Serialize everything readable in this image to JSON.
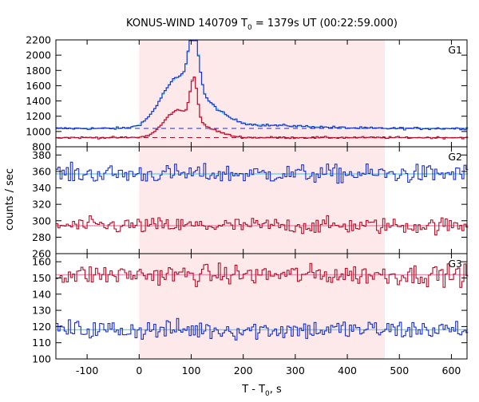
{
  "chart_data": {
    "type": "line",
    "title": "KONUS-WIND 140709 T",
    "title_sub": "0",
    "title_rest": " = 1379s UT (00:22:59.000)",
    "xlabel": "T - T",
    "xlabel_sub": "0",
    "xlabel_rest": ", s",
    "ylabel": "counts / sec",
    "xlim": [
      -160,
      630
    ],
    "x_ticks": [
      -100,
      0,
      100,
      200,
      300,
      400,
      500,
      600
    ],
    "x_tick_labels": [
      "-100",
      "0",
      "100",
      "200",
      "300",
      "400",
      "500",
      "600"
    ],
    "highlight_interval": [
      0,
      472
    ],
    "highlight_color": "#fde8ea",
    "bin_width": 4,
    "panels": [
      {
        "label": "G1",
        "ylim": [
          800,
          2200
        ],
        "y_ticks": [
          800,
          1000,
          1200,
          1400,
          1600,
          1800,
          2000,
          2200
        ],
        "y_tick_labels": [
          "800",
          "1000",
          "1200",
          "1400",
          "1600",
          "1800",
          "2000",
          "2200"
        ],
        "series": [
          {
            "color": "#1a2fc9",
            "fit_color": "#6fd3f0",
            "background_level": 1040,
            "background_style": "dashed",
            "base": 1040,
            "noise": 12,
            "peaks": [
              {
                "center": 70,
                "height": 520,
                "width": 32
              },
              {
                "center": 105,
                "height": 780,
                "width": 9
              },
              {
                "center": 120,
                "height": 280,
                "width": 40
              },
              {
                "center": 240,
                "height": 40,
                "width": 90
              }
            ]
          },
          {
            "color": "#b0102a",
            "fit_color": "#f28fb4",
            "background_level": 920,
            "background_style": "dashed",
            "base": 920,
            "noise": 10,
            "peaks": [
              {
                "center": 72,
                "height": 330,
                "width": 25
              },
              {
                "center": 105,
                "height": 560,
                "width": 7
              },
              {
                "center": 125,
                "height": 120,
                "width": 30
              }
            ]
          }
        ]
      },
      {
        "label": "G2",
        "ylim": [
          260,
          390
        ],
        "y_ticks": [
          260,
          280,
          300,
          320,
          340,
          360,
          380
        ],
        "y_tick_labels": [
          "260",
          "280",
          "300",
          "320",
          "340",
          "360",
          "380"
        ],
        "series": [
          {
            "color": "#1a2fc9",
            "fit_color": "#6fd3f0",
            "base": 357,
            "noise": 8,
            "peaks": []
          },
          {
            "color": "#b0102a",
            "fit_color": "#f28fb4",
            "base": 294,
            "noise": 7,
            "peaks": []
          }
        ]
      },
      {
        "label": "G3",
        "ylim": [
          100,
          165
        ],
        "y_ticks": [
          100,
          110,
          120,
          130,
          140,
          150,
          160
        ],
        "y_tick_labels": [
          "100",
          "110",
          "120",
          "130",
          "140",
          "150",
          "160"
        ],
        "series": [
          {
            "color": "#b0102a",
            "fit_color": "#f28fb4",
            "base": 152,
            "noise": 4.5,
            "peaks": []
          },
          {
            "color": "#1a2fc9",
            "fit_color": "#6fd3f0",
            "base": 118,
            "noise": 4.5,
            "peaks": []
          }
        ]
      }
    ]
  }
}
